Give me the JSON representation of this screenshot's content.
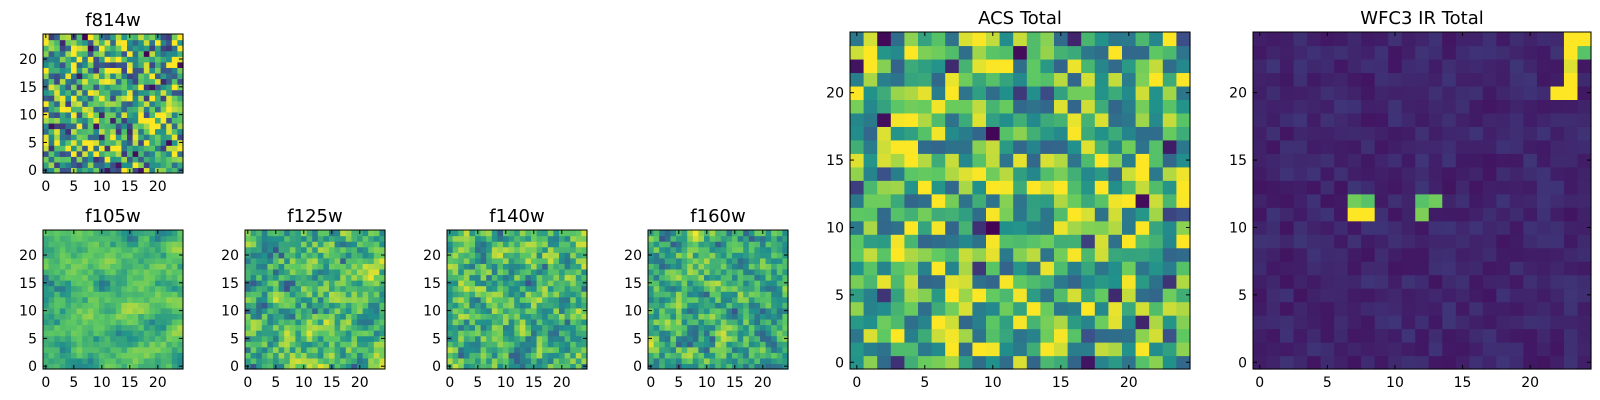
{
  "figure": {
    "colormap": "viridis",
    "colormap_stops": [
      "#440154",
      "#3b528b",
      "#21918c",
      "#5ec962",
      "#fde725"
    ]
  },
  "chart_data": [
    {
      "type": "heatmap",
      "title": "f814w",
      "grid": [
        25,
        25
      ],
      "xlim": [
        0,
        25
      ],
      "ylim": [
        0,
        25
      ],
      "xticks": [
        0,
        5,
        10,
        15,
        20
      ],
      "yticks": [
        0,
        5,
        10,
        15,
        20
      ],
      "value_range": [
        0,
        1
      ],
      "texture": "noisy-green-yellow",
      "base": 0.62,
      "spread": 0.45,
      "seed": 11
    },
    {
      "type": "heatmap",
      "title": "f105w",
      "grid": [
        25,
        25
      ],
      "xlim": [
        0,
        25
      ],
      "ylim": [
        0,
        25
      ],
      "xticks": [
        0,
        5,
        10,
        15,
        20
      ],
      "yticks": [
        0,
        5,
        10,
        15,
        20
      ],
      "value_range": [
        0,
        1
      ],
      "texture": "smooth-green-yellow",
      "base": 0.7,
      "spread": 0.32,
      "seed": 23
    },
    {
      "type": "heatmap",
      "title": "f125w",
      "grid": [
        25,
        25
      ],
      "xlim": [
        0,
        25
      ],
      "ylim": [
        0,
        25
      ],
      "xticks": [
        0,
        5,
        10,
        15,
        20
      ],
      "yticks": [
        0,
        5,
        10,
        15,
        20
      ],
      "value_range": [
        0,
        1
      ],
      "texture": "mottled-green-yellow",
      "base": 0.66,
      "spread": 0.4,
      "seed": 37
    },
    {
      "type": "heatmap",
      "title": "f140w",
      "grid": [
        25,
        25
      ],
      "xlim": [
        0,
        25
      ],
      "ylim": [
        0,
        25
      ],
      "xticks": [
        0,
        5,
        10,
        15,
        20
      ],
      "yticks": [
        0,
        5,
        10,
        15,
        20
      ],
      "value_range": [
        0,
        1
      ],
      "texture": "mottled-green-yellow",
      "base": 0.66,
      "spread": 0.42,
      "seed": 41
    },
    {
      "type": "heatmap",
      "title": "f160w",
      "grid": [
        25,
        25
      ],
      "xlim": [
        0,
        25
      ],
      "ylim": [
        0,
        25
      ],
      "xticks": [
        0,
        5,
        10,
        15,
        20
      ],
      "yticks": [
        0,
        5,
        10,
        15,
        20
      ],
      "value_range": [
        0,
        1
      ],
      "texture": "mottled-green-yellow",
      "base": 0.64,
      "spread": 0.42,
      "seed": 53
    },
    {
      "type": "heatmap",
      "title": "ACS Total",
      "grid": [
        25,
        25
      ],
      "xlim": [
        0,
        25
      ],
      "ylim": [
        0,
        25
      ],
      "xticks": [
        0,
        5,
        10,
        15,
        20
      ],
      "yticks": [
        0,
        5,
        10,
        15,
        20
      ],
      "value_range": [
        0,
        1
      ],
      "texture": "noisy-green-yellow",
      "base": 0.68,
      "spread": 0.36,
      "seed": 67
    },
    {
      "type": "heatmap",
      "title": "WFC3 IR Total",
      "grid": [
        25,
        25
      ],
      "xlim": [
        0,
        25
      ],
      "ylim": [
        0,
        25
      ],
      "xticks": [
        0,
        5,
        10,
        15,
        20
      ],
      "yticks": [
        0,
        5,
        10,
        15,
        20
      ],
      "value_range": [
        0,
        1
      ],
      "texture": "dark-with-bright-sources",
      "base": 0.06,
      "spread": 0.1,
      "seed": 79,
      "bright_cells": [
        {
          "x": 7,
          "y": 11,
          "v": 1.0
        },
        {
          "x": 8,
          "y": 11,
          "v": 1.0
        },
        {
          "x": 7,
          "y": 12,
          "v": 0.78
        },
        {
          "x": 8,
          "y": 12,
          "v": 0.72
        },
        {
          "x": 12,
          "y": 11,
          "v": 0.8
        },
        {
          "x": 12,
          "y": 12,
          "v": 0.72
        },
        {
          "x": 13,
          "y": 12,
          "v": 0.78
        },
        {
          "x": 22,
          "y": 20,
          "v": 1.0
        },
        {
          "x": 23,
          "y": 20,
          "v": 1.0
        },
        {
          "x": 23,
          "y": 21,
          "v": 1.0
        },
        {
          "x": 23,
          "y": 22,
          "v": 0.95
        },
        {
          "x": 23,
          "y": 23,
          "v": 1.0
        },
        {
          "x": 24,
          "y": 23,
          "v": 0.72
        },
        {
          "x": 23,
          "y": 24,
          "v": 1.0
        },
        {
          "x": 24,
          "y": 24,
          "v": 1.0
        }
      ]
    }
  ]
}
